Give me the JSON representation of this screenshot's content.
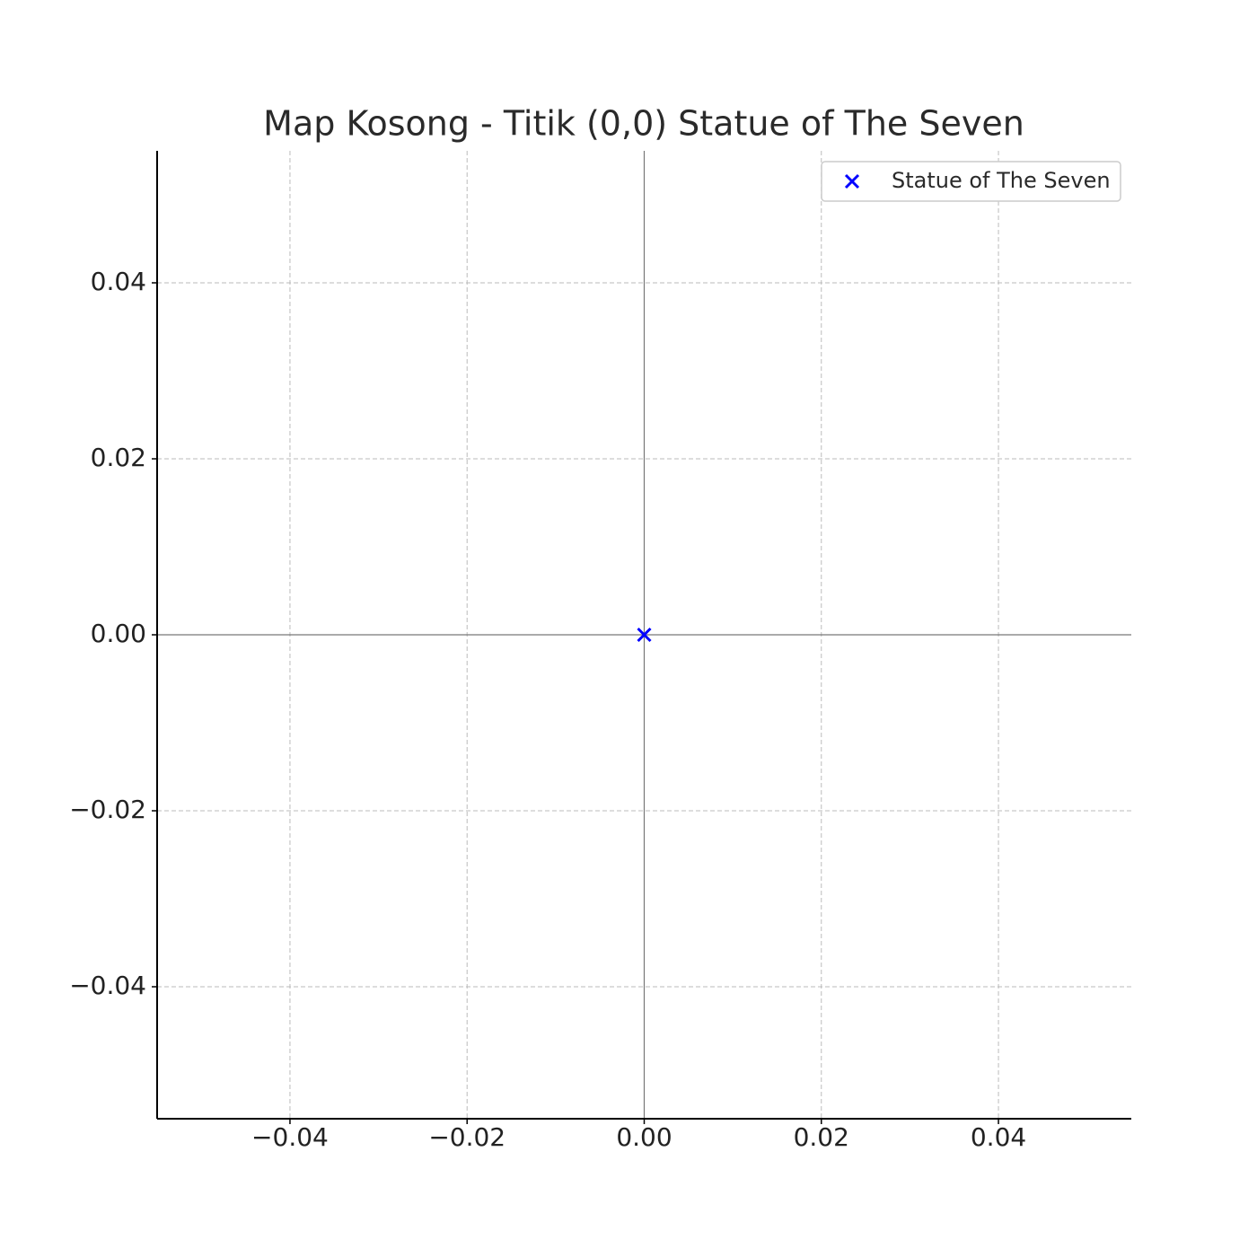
{
  "chart_data": {
    "type": "scatter",
    "title": "Map Kosong - Titik (0,0) Statue of The Seven",
    "series": [
      {
        "name": "Statue of The Seven",
        "color": "#0000ff",
        "marker": "x",
        "x": [
          0
        ],
        "values": [
          0
        ]
      }
    ],
    "xlim": [
      -0.055,
      0.055
    ],
    "ylim": [
      -0.055,
      0.055
    ],
    "xticks": [
      {
        "value": -0.04,
        "label": "−0.04"
      },
      {
        "value": -0.02,
        "label": "−0.02"
      },
      {
        "value": 0,
        "label": "0.00"
      },
      0.02,
      0.04
    ],
    "yticks": [
      {
        "value": -0.04,
        "label": "−0.04"
      },
      {
        "value": -0.02,
        "label": "−0.02"
      },
      {
        "value": 0,
        "label": "0.00"
      },
      0.02,
      0.04
    ],
    "grid": true,
    "zero_lines": true,
    "legend": "upper right"
  }
}
